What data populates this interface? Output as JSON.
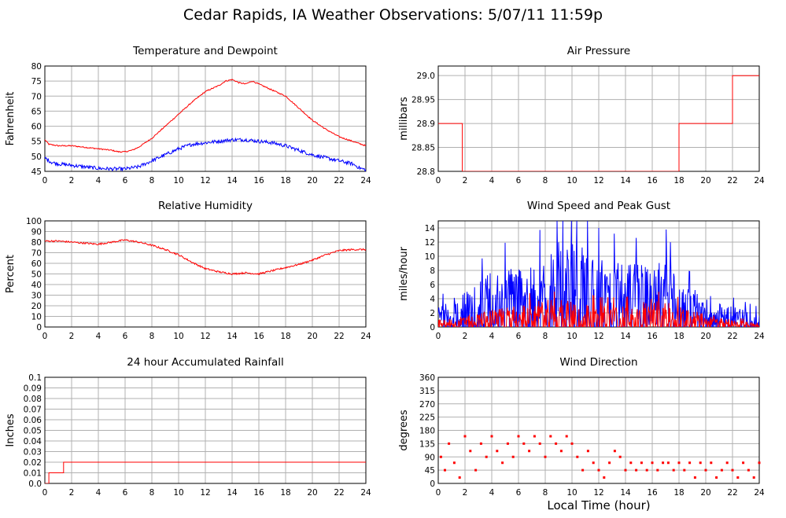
{
  "page": {
    "title": "Cedar Rapids, IA Weather Observations: 5/07/11 11:59p",
    "xaxis_label": "Local Time (hour)"
  },
  "colors": {
    "red": "#ff0000",
    "blue": "#0000ff",
    "grid": "#b0b0b0"
  },
  "chart_data": [
    {
      "id": "temp",
      "type": "line",
      "title": "Temperature and Dewpoint",
      "xlabel": "",
      "ylabel": "Fahrenheit",
      "xlim": [
        0,
        24
      ],
      "ylim": [
        45,
        80
      ],
      "xticks": [
        0,
        2,
        4,
        6,
        8,
        10,
        12,
        14,
        16,
        18,
        20,
        22,
        24
      ],
      "yticks": [
        45,
        50,
        55,
        60,
        65,
        70,
        75,
        80
      ],
      "ytick_labels": [
        "45",
        "50",
        "55",
        "60",
        "65",
        "70",
        "75",
        "80"
      ],
      "grid": true,
      "series": [
        {
          "color": "#ff0000",
          "noise": 0.2,
          "x": [
            0,
            0.3,
            1,
            2,
            3,
            4,
            5,
            5.5,
            6,
            6.5,
            7,
            8,
            9,
            10,
            11,
            12,
            13,
            13.5,
            14,
            14.5,
            15,
            15.5,
            16,
            16.5,
            17,
            18,
            19,
            20,
            21,
            22,
            23,
            24
          ],
          "y": [
            55.5,
            54,
            53.5,
            53.5,
            53,
            52.5,
            52,
            51.5,
            51.5,
            52,
            53,
            56,
            60,
            64,
            68,
            71.5,
            73.5,
            75,
            75.5,
            74.5,
            74,
            75,
            74,
            73,
            72,
            70,
            66,
            62,
            59,
            56.5,
            55,
            53.5
          ]
        },
        {
          "color": "#0000ff",
          "noise": 0.6,
          "x": [
            0,
            0.5,
            1,
            2,
            3,
            4,
            5,
            6,
            7,
            8,
            9,
            10,
            11,
            12,
            13,
            14,
            15,
            16,
            17,
            18,
            19,
            20,
            21,
            22,
            23,
            23.6,
            24
          ],
          "y": [
            49.5,
            48,
            47.5,
            47,
            46.5,
            46,
            45.8,
            45.8,
            46.5,
            48.5,
            50.5,
            52.5,
            54,
            54.5,
            55,
            55.5,
            55.5,
            55,
            54.5,
            53.5,
            52,
            50.5,
            49.5,
            48.5,
            47.5,
            46,
            45.5
          ]
        }
      ]
    },
    {
      "id": "pressure",
      "type": "line",
      "title": "Air Pressure",
      "xlabel": "",
      "ylabel": "millibars",
      "xlim": [
        0,
        24
      ],
      "ylim": [
        28.8,
        29.02
      ],
      "xticks": [
        0,
        2,
        4,
        6,
        8,
        10,
        12,
        14,
        16,
        18,
        20,
        22,
        24
      ],
      "yticks": [
        28.8,
        28.85,
        28.9,
        28.95,
        29.0
      ],
      "ytick_labels": [
        "28.8",
        "28.85",
        "28.9",
        "28.95",
        "29.0"
      ],
      "grid": true,
      "series": [
        {
          "color": "#ff0000",
          "noise": 0,
          "step": true,
          "x": [
            0,
            1.8,
            1.8,
            18,
            18,
            22,
            22,
            24
          ],
          "y": [
            28.9,
            28.9,
            28.8,
            28.8,
            28.9,
            28.9,
            29.0,
            29.0
          ]
        }
      ]
    },
    {
      "id": "humidity",
      "type": "line",
      "title": "Relative Humidity",
      "xlabel": "",
      "ylabel": "Percent",
      "xlim": [
        0,
        24
      ],
      "ylim": [
        0,
        100
      ],
      "xticks": [
        0,
        2,
        4,
        6,
        8,
        10,
        12,
        14,
        16,
        18,
        20,
        22,
        24
      ],
      "yticks": [
        0,
        10,
        20,
        30,
        40,
        50,
        60,
        70,
        80,
        90,
        100
      ],
      "ytick_labels": [
        "0",
        "10",
        "20",
        "30",
        "40",
        "50",
        "60",
        "70",
        "80",
        "90",
        "100"
      ],
      "grid": true,
      "series": [
        {
          "color": "#ff0000",
          "noise": 0.8,
          "x": [
            0,
            1,
            2,
            3,
            4,
            5,
            6,
            7,
            8,
            9,
            10,
            11,
            12,
            13,
            14,
            15,
            16,
            17,
            18,
            19,
            20,
            21,
            22,
            23,
            24
          ],
          "y": [
            81,
            81,
            80,
            79,
            78,
            80,
            82,
            80,
            77,
            73,
            68,
            61,
            55,
            52,
            50,
            51,
            50,
            53,
            56,
            59,
            63,
            68,
            72,
            73,
            73
          ]
        }
      ]
    },
    {
      "id": "wind",
      "type": "line",
      "title": "Wind Speed and Peak Gust",
      "xlabel": "",
      "ylabel": "miles/hour",
      "xlim": [
        0,
        24
      ],
      "ylim": [
        0,
        15
      ],
      "xticks": [
        0,
        2,
        4,
        6,
        8,
        10,
        12,
        14,
        16,
        18,
        20,
        22,
        24
      ],
      "yticks": [
        0,
        2,
        4,
        6,
        8,
        10,
        12,
        14
      ],
      "ytick_labels": [
        "0",
        "2",
        "4",
        "6",
        "8",
        "10",
        "12",
        "14"
      ],
      "grid": true,
      "series": [
        {
          "color": "#0000ff",
          "noise": 0,
          "spiky": true,
          "peak": 15,
          "x": [
            0,
            2,
            4,
            6,
            8,
            9,
            10,
            12,
            14,
            16,
            17,
            18,
            20,
            22,
            24
          ],
          "y": [
            1.5,
            2.5,
            4,
            4.5,
            5,
            7,
            6,
            5,
            4.5,
            4.5,
            5,
            3,
            2.5,
            1.5,
            1
          ]
        },
        {
          "color": "#ff0000",
          "noise": 0,
          "spiky": true,
          "peak": 5,
          "x": [
            0,
            2,
            4,
            6,
            8,
            10,
            12,
            14,
            16,
            18,
            20,
            22,
            24
          ],
          "y": [
            0.5,
            0.8,
            1.2,
            1.5,
            2,
            2,
            1.5,
            1.5,
            2,
            1.5,
            1,
            0.5,
            0.3
          ]
        }
      ]
    },
    {
      "id": "rain",
      "type": "line",
      "title": "24 hour Accumulated Rainfall",
      "xlabel": "",
      "ylabel": "Inches",
      "xlim": [
        0,
        24
      ],
      "ylim": [
        0,
        0.1
      ],
      "xticks": [
        0,
        2,
        4,
        6,
        8,
        10,
        12,
        14,
        16,
        18,
        20,
        22,
        24
      ],
      "yticks": [
        0,
        0.01,
        0.02,
        0.03,
        0.04,
        0.05,
        0.06,
        0.07,
        0.08,
        0.09,
        0.1
      ],
      "ytick_labels": [
        "0.0",
        "0.01",
        "0.02",
        "0.03",
        "0.04",
        "0.05",
        "0.06",
        "0.07",
        "0.08",
        "0.09",
        "0.1"
      ],
      "grid": true,
      "series": [
        {
          "color": "#ff0000",
          "noise": 0,
          "step": true,
          "x": [
            0,
            0.3,
            0.3,
            1.4,
            1.4,
            24
          ],
          "y": [
            0.0,
            0.0,
            0.01,
            0.01,
            0.02,
            0.02
          ]
        }
      ]
    },
    {
      "id": "direction",
      "type": "scatter",
      "title": "Wind Direction",
      "xlabel": "Local Time (hour)",
      "ylabel": "degrees",
      "xlim": [
        0,
        24
      ],
      "ylim": [
        0,
        360
      ],
      "xticks": [
        0,
        2,
        4,
        6,
        8,
        10,
        12,
        14,
        16,
        18,
        20,
        22,
        24
      ],
      "yticks": [
        0,
        45,
        90,
        135,
        180,
        225,
        270,
        315,
        360
      ],
      "ytick_labels": [
        "0",
        "45",
        "90",
        "135",
        "180",
        "225",
        "270",
        "315",
        "360"
      ],
      "grid": true,
      "series": [
        {
          "color": "#ff0000",
          "x": [
            0.2,
            0.5,
            0.8,
            1.2,
            1.6,
            2.0,
            2.4,
            2.8,
            3.2,
            3.6,
            4.0,
            4.4,
            4.8,
            5.2,
            5.6,
            6.0,
            6.4,
            6.8,
            7.2,
            7.6,
            8.0,
            8.4,
            8.8,
            9.2,
            9.6,
            10.0,
            10.4,
            10.8,
            11.2,
            11.6,
            12.0,
            12.4,
            12.8,
            13.2,
            13.6,
            14.0,
            14.4,
            14.8,
            15.2,
            15.6,
            16.0,
            16.4,
            16.8,
            17.2,
            17.6,
            18.0,
            18.4,
            18.8,
            19.2,
            19.6,
            20.0,
            20.4,
            20.8,
            21.2,
            21.6,
            22.0,
            22.4,
            22.8,
            23.2,
            23.6,
            24.0
          ],
          "y": [
            90,
            45,
            135,
            70,
            20,
            160,
            110,
            45,
            135,
            90,
            160,
            110,
            70,
            135,
            90,
            160,
            135,
            110,
            160,
            135,
            90,
            160,
            135,
            110,
            160,
            135,
            90,
            45,
            110,
            70,
            45,
            20,
            70,
            110,
            90,
            45,
            70,
            45,
            70,
            45,
            70,
            45,
            70,
            70,
            45,
            70,
            45,
            70,
            20,
            70,
            45,
            70,
            20,
            45,
            70,
            45,
            20,
            70,
            45,
            20,
            70
          ]
        }
      ]
    }
  ]
}
